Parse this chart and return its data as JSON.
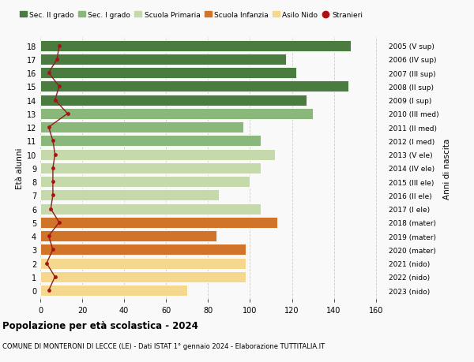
{
  "ages": [
    18,
    17,
    16,
    15,
    14,
    13,
    12,
    11,
    10,
    9,
    8,
    7,
    6,
    5,
    4,
    3,
    2,
    1,
    0
  ],
  "bar_values": [
    148,
    117,
    122,
    147,
    127,
    130,
    97,
    105,
    112,
    105,
    100,
    85,
    105,
    113,
    84,
    98,
    98,
    98,
    70
  ],
  "stranieri": [
    9,
    8,
    4,
    9,
    7,
    13,
    4,
    6,
    7,
    6,
    6,
    6,
    5,
    9,
    4,
    6,
    3,
    7,
    4
  ],
  "right_labels": [
    "2005 (V sup)",
    "2006 (IV sup)",
    "2007 (III sup)",
    "2008 (II sup)",
    "2009 (I sup)",
    "2010 (III med)",
    "2011 (II med)",
    "2012 (I med)",
    "2013 (V ele)",
    "2014 (IV ele)",
    "2015 (III ele)",
    "2016 (II ele)",
    "2017 (I ele)",
    "2018 (mater)",
    "2019 (mater)",
    "2020 (mater)",
    "2021 (nido)",
    "2022 (nido)",
    "2023 (nido)"
  ],
  "bar_colors": [
    "#4a7c3f",
    "#4a7c3f",
    "#4a7c3f",
    "#4a7c3f",
    "#4a7c3f",
    "#8ab87a",
    "#8ab87a",
    "#8ab87a",
    "#c5d9aa",
    "#c5d9aa",
    "#c5d9aa",
    "#c5d9aa",
    "#c5d9aa",
    "#d2732a",
    "#d2732a",
    "#d2732a",
    "#f5d78e",
    "#f5d78e",
    "#f5d78e"
  ],
  "stranieri_color": "#aa1111",
  "stranieri_line_color": "#882222",
  "title": "Popolazione per età scolastica - 2024",
  "subtitle": "COMUNE DI MONTERONI DI LECCE (LE) - Dati ISTAT 1° gennaio 2024 - Elaborazione TUTTITALIA.IT",
  "ylabel": "Età alunni",
  "ylabel_right": "Anni di nascita",
  "xlim": [
    0,
    165
  ],
  "xticks": [
    0,
    20,
    40,
    60,
    80,
    100,
    120,
    140,
    160
  ],
  "legend_labels": [
    "Sec. II grado",
    "Sec. I grado",
    "Scuola Primaria",
    "Scuola Infanzia",
    "Asilo Nido",
    "Stranieri"
  ],
  "legend_colors": [
    "#4a7c3f",
    "#8ab87a",
    "#c5d9aa",
    "#d2732a",
    "#f5d78e",
    "#aa1111"
  ],
  "background_color": "#f9f9f9",
  "bar_edge_color": "white",
  "grid_color": "#cccccc"
}
